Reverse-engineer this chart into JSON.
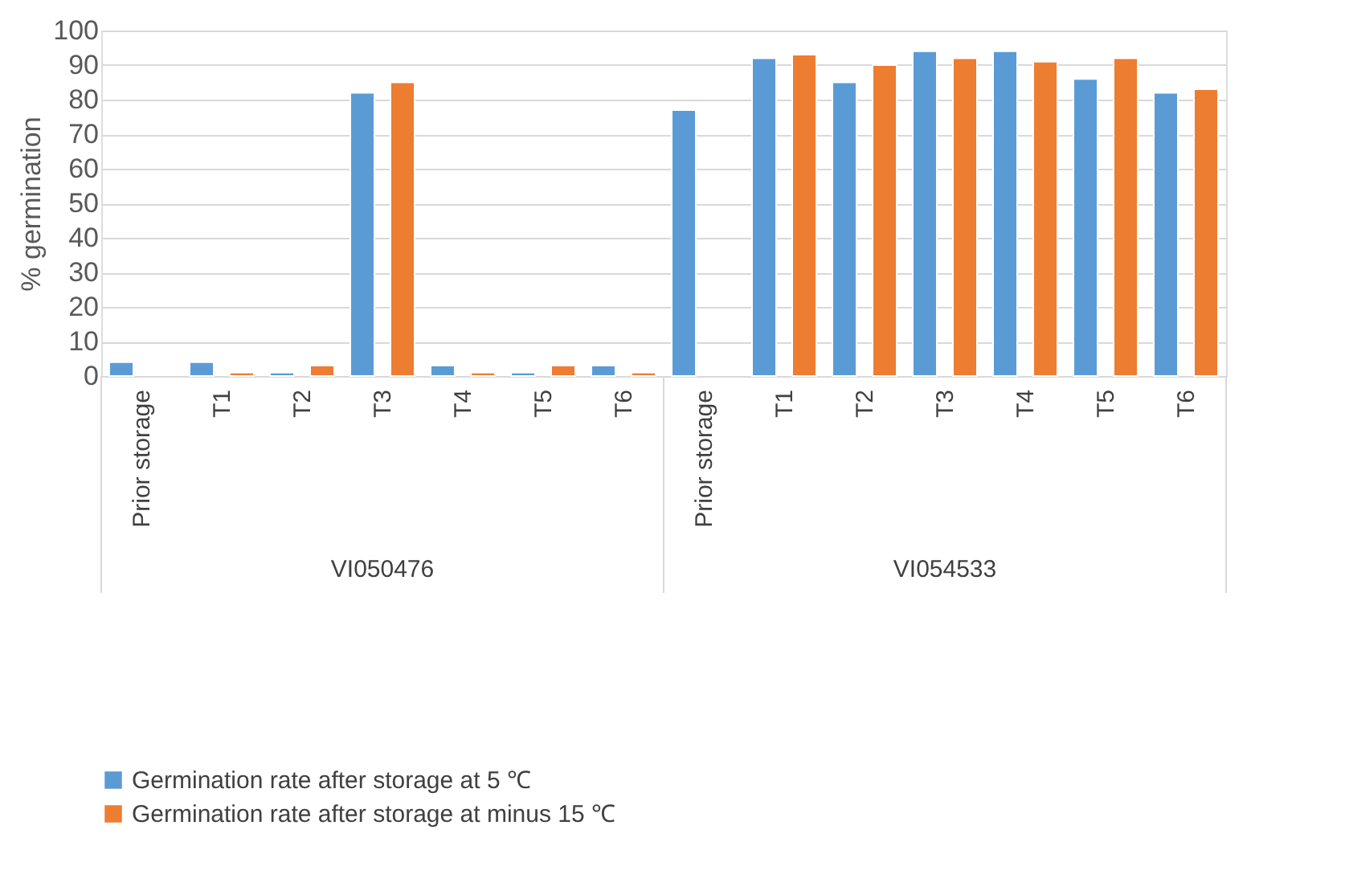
{
  "chart_data": {
    "type": "bar",
    "ylabel": "% germination",
    "categories": [
      "Prior storage",
      "T1",
      "T2",
      "T3",
      "T4",
      "T5",
      "T6",
      "Prior storage",
      "T1",
      "T2",
      "T3",
      "T4",
      "T5",
      "T6"
    ],
    "series": [
      {
        "name": "Germination rate after storage at 5 ℃",
        "color": "#5b9bd5",
        "values": [
          4,
          4,
          1,
          82,
          3,
          1,
          3,
          77,
          92,
          85,
          94,
          94,
          86,
          82
        ]
      },
      {
        "name": "Germination rate after storage at minus 15 ℃",
        "color": "#ed7d31",
        "values": [
          null,
          1,
          3,
          85,
          1,
          3,
          1,
          null,
          93,
          90,
          92,
          91,
          92,
          83
        ]
      }
    ],
    "annotations": [
      "VI050476",
      "VI054533"
    ],
    "ylim": [
      0,
      100
    ],
    "yticks": [
      0,
      10,
      20,
      30,
      40,
      50,
      60,
      70,
      80,
      90,
      100
    ],
    "grid": "y",
    "legend": "bottom"
  }
}
